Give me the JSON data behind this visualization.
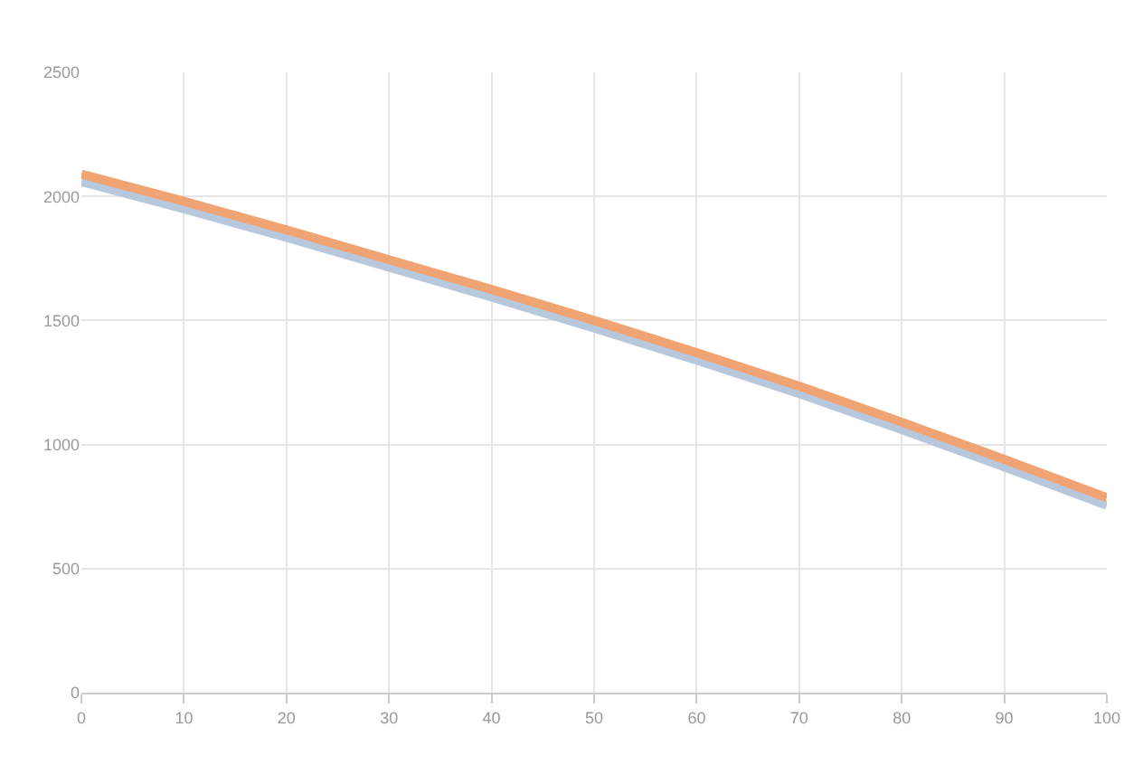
{
  "chart_data": {
    "type": "line",
    "x": [
      0,
      10,
      20,
      30,
      40,
      50,
      60,
      70,
      80,
      90,
      100
    ],
    "series": [
      {
        "color": "#b8c8dc",
        "values": [
          2060,
          1950,
          1835,
          1715,
          1595,
          1470,
          1340,
          1205,
          1060,
          910,
          755
        ]
      },
      {
        "color": "#f0a474",
        "values": [
          2090,
          1980,
          1865,
          1745,
          1625,
          1500,
          1370,
          1235,
          1090,
          940,
          786
        ]
      }
    ],
    "xlim": [
      0,
      100
    ],
    "xticks": [
      0,
      10,
      20,
      30,
      40,
      50,
      60,
      70,
      80,
      90,
      100
    ],
    "ylim": [
      0,
      2500
    ],
    "yticks": [
      0,
      500,
      1000,
      1500,
      2000,
      2500
    ],
    "grid": true
  }
}
